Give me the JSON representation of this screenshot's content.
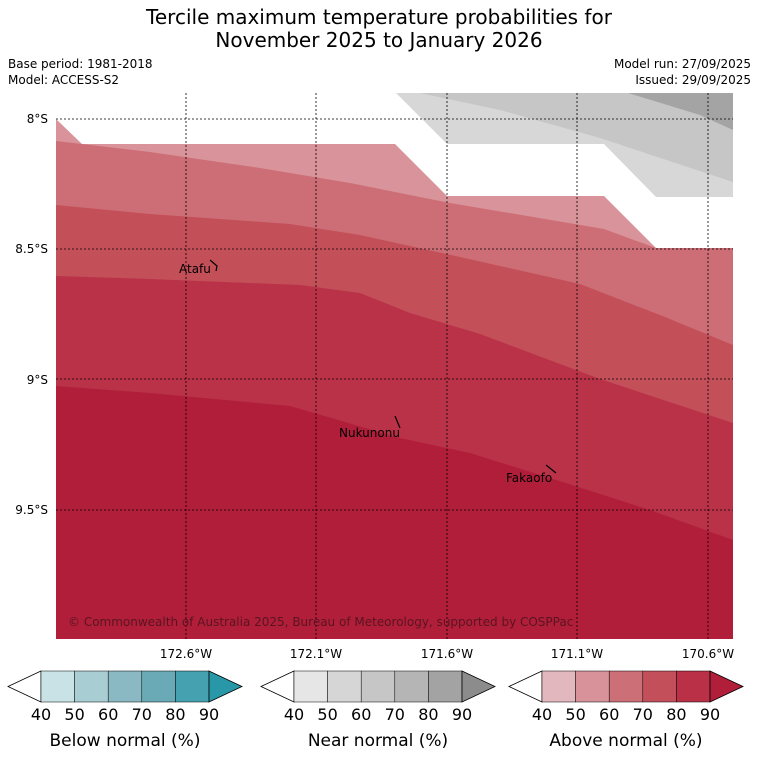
{
  "title": {
    "line1": "Tercile maximum temperature probabilities for",
    "line2": "November 2025 to January 2026"
  },
  "meta": {
    "base_period": "Base period: 1981-2018",
    "model": "Model: ACCESS-S2",
    "model_run": "Model run: 27/09/2025",
    "issued": "Issued: 29/09/2025"
  },
  "map": {
    "lat_labels": [
      "8°S",
      "8.5°S",
      "9°S",
      "9.5°S"
    ],
    "lon_labels": [
      "172.6°W",
      "172.1°W",
      "171.6°W",
      "171.1°W",
      "170.6°W"
    ],
    "places": [
      "Atafu",
      "Nukunonu",
      "Fakaofo"
    ],
    "copyright": "© Commonwealth of Australia 2025, Bureau of Meteorology, supported by COSPPac"
  },
  "colorbars": [
    {
      "label": "Below normal (%)",
      "ticks": [
        "40",
        "50",
        "60",
        "70",
        "80",
        "90"
      ],
      "colors": [
        "#ffffff",
        "#c9e2e6",
        "#a8cdd3",
        "#8ab9c3",
        "#6aaab6",
        "#45a0b0",
        "#2898a8"
      ]
    },
    {
      "label": "Near normal (%)",
      "ticks": [
        "40",
        "50",
        "60",
        "70",
        "80",
        "90"
      ],
      "colors": [
        "#ffffff",
        "#e6e6e6",
        "#d6d6d6",
        "#c6c6c6",
        "#b5b5b5",
        "#a3a3a3",
        "#8c8c8c"
      ]
    },
    {
      "label": "Above normal (%)",
      "ticks": [
        "40",
        "50",
        "60",
        "70",
        "80",
        "90"
      ],
      "colors": [
        "#ffffff",
        "#e2b7be",
        "#d8939a",
        "#cd6f77",
        "#c34f5a",
        "#b93047",
        "#b11e3a"
      ]
    }
  ]
}
